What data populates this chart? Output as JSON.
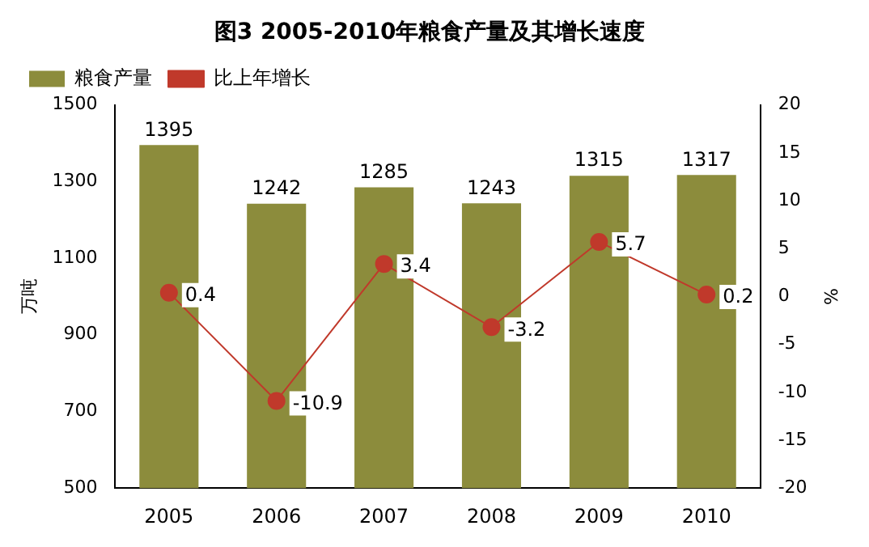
{
  "chart_data": {
    "type": "bar",
    "title": "图3 2005-2010年粮食产量及其增长速度",
    "ylabel": "万吨",
    "y2label": "%",
    "categories": [
      "2005",
      "2006",
      "2007",
      "2008",
      "2009",
      "2010"
    ],
    "series": [
      {
        "name": "粮食产量",
        "color": "#8c8c3c",
        "values": [
          1395,
          1242,
          1285,
          1243,
          1315,
          1317
        ]
      },
      {
        "name": "比上年增长",
        "type": "line",
        "axis": "y2",
        "color": "#c0392b",
        "marker": "circle",
        "values": [
          0.4,
          -10.9,
          3.4,
          -3.2,
          5.7,
          0.2
        ]
      }
    ],
    "ylim": [
      500,
      1500
    ],
    "yticks": [
      500,
      700,
      900,
      1100,
      1300,
      1500
    ],
    "y2lim": [
      -20,
      20
    ],
    "y2ticks": [
      -20,
      -15,
      -10,
      -5,
      0,
      5,
      10,
      15,
      20
    ],
    "data_labels": true,
    "legend": "top left",
    "grid": false
  }
}
